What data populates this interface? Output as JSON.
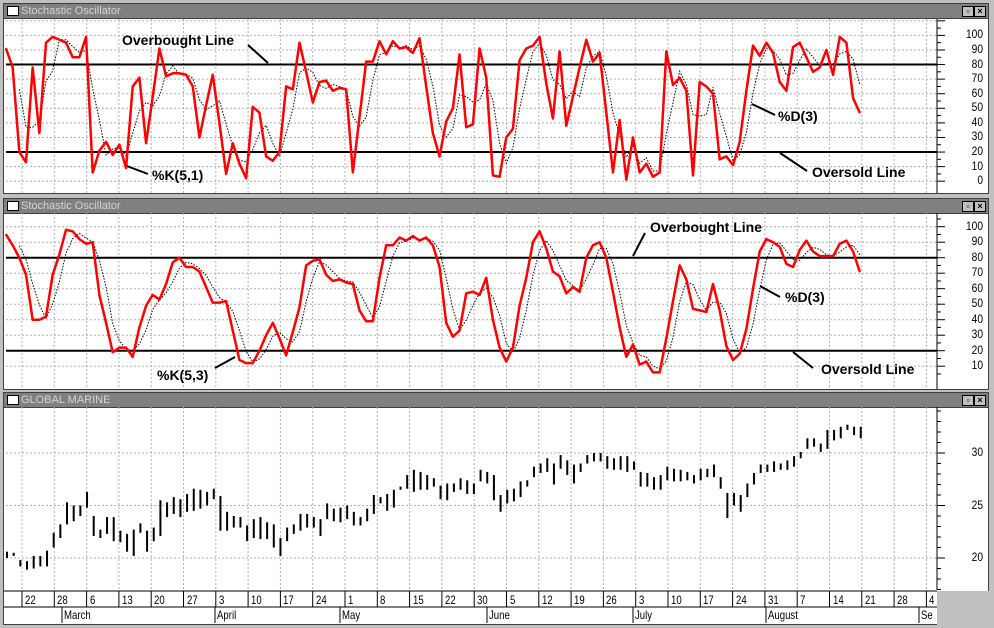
{
  "panels": [
    {
      "title": "Stochastic Oscillator",
      "restore_icon": "restore-icon",
      "close_icon": "close-icon"
    },
    {
      "title": "Stochastic Oscillator",
      "restore_icon": "restore-icon",
      "close_icon": "close-icon"
    },
    {
      "title": "GLOBAL MARINE",
      "restore_icon": "restore-icon",
      "close_icon": "close-icon"
    }
  ],
  "date_axis": {
    "days": [
      "22",
      "28",
      "6",
      "13",
      "20",
      "27",
      "3",
      "10",
      "17",
      "24",
      "1",
      "8",
      "15",
      "22",
      "30",
      "5",
      "12",
      "19",
      "26",
      "3",
      "10",
      "17",
      "24",
      "31",
      "7",
      "14",
      "21",
      "28",
      "4"
    ],
    "months": [
      "March",
      "April",
      "May",
      "June",
      "July",
      "August",
      "Se"
    ]
  },
  "chart_data": [
    {
      "type": "line",
      "title": "Stochastic Oscillator",
      "ylim": [
        0,
        100
      ],
      "yticks": [
        "100",
        "90",
        "80",
        "70",
        "60",
        "50",
        "40",
        "30",
        "20",
        "10",
        "0"
      ],
      "reference_lines": [
        80,
        20
      ],
      "annotations": [
        "Overbought Line",
        "%K(5,1)",
        "%D(3)",
        "Oversold Line"
      ],
      "colors": {
        "k": "#ff0000",
        "d": "#000000",
        "reference": "#000000"
      },
      "series": [
        {
          "name": "%K(5,1)",
          "style": "solid",
          "values": [
            91,
            78,
            20,
            13,
            78,
            33,
            95,
            99,
            97,
            95,
            85,
            85,
            99,
            6,
            21,
            27,
            18,
            25,
            9,
            65,
            71,
            26,
            58,
            91,
            72,
            74,
            74,
            73,
            65,
            30,
            52,
            73,
            40,
            5,
            26,
            12,
            2,
            51,
            47,
            17,
            14,
            20,
            65,
            63,
            95,
            75,
            54,
            68,
            69,
            62,
            64,
            63,
            6,
            44,
            82,
            82,
            96,
            87,
            96,
            91,
            92,
            88,
            98,
            65,
            33,
            17,
            41,
            50,
            87,
            37,
            39,
            91,
            71,
            4,
            3,
            30,
            36,
            83,
            91,
            93,
            99,
            67,
            43,
            89,
            38,
            58,
            78,
            97,
            82,
            88,
            47,
            6,
            42,
            1,
            30,
            6,
            12,
            3,
            6,
            89,
            66,
            71,
            62,
            4,
            68,
            65,
            60,
            15,
            17,
            11,
            27,
            62,
            93,
            86,
            95,
            88,
            68,
            62,
            92,
            95,
            85,
            75,
            78,
            90,
            73,
            99,
            95,
            57,
            47
          ]
        },
        {
          "name": "%D(3)",
          "style": "dotted",
          "moving_average_of": "%K(5,1)",
          "period": 3
        }
      ]
    },
    {
      "type": "line",
      "title": "Stochastic Oscillator",
      "ylim": [
        0,
        100
      ],
      "yticks": [
        "100",
        "90",
        "80",
        "70",
        "60",
        "50",
        "40",
        "30",
        "20",
        "10"
      ],
      "reference_lines": [
        80,
        20
      ],
      "annotations": [
        "Overbought Line",
        "%D(3)",
        "Oversold Line",
        "%K(5,3)"
      ],
      "colors": {
        "k": "#ff0000",
        "d": "#000000",
        "reference": "#000000"
      },
      "series": [
        {
          "name": "%K(5,3)",
          "style": "solid",
          "values": [
            95,
            88,
            80,
            69,
            40,
            40,
            42,
            69,
            82,
            98,
            97,
            92,
            89,
            90,
            56,
            38,
            19,
            22,
            22,
            16,
            35,
            49,
            56,
            53,
            63,
            77,
            80,
            74,
            74,
            71,
            61,
            51,
            51,
            52,
            33,
            14,
            12,
            12,
            20,
            30,
            38,
            28,
            17,
            32,
            48,
            75,
            78,
            79,
            69,
            65,
            66,
            64,
            63,
            46,
            39,
            39,
            67,
            88,
            88,
            93,
            91,
            94,
            91,
            93,
            88,
            74,
            38,
            29,
            33,
            57,
            58,
            56,
            67,
            40,
            22,
            13,
            22,
            49,
            67,
            90,
            97,
            86,
            71,
            68,
            57,
            61,
            58,
            80,
            88,
            90,
            80,
            58,
            35,
            16,
            24,
            11,
            13,
            6,
            6,
            28,
            52,
            75,
            66,
            47,
            46,
            45,
            63,
            46,
            23,
            14,
            18,
            34,
            60,
            84,
            92,
            90,
            87,
            76,
            74,
            85,
            91,
            84,
            81,
            81,
            81,
            89,
            91,
            84,
            71
          ]
        },
        {
          "name": "%D(3)",
          "style": "dotted",
          "moving_average_of": "%K(5,3)",
          "period": 3
        }
      ]
    },
    {
      "type": "bar",
      "subtype": "high-low price bars",
      "title": "GLOBAL MARINE",
      "ylim": [
        18,
        34
      ],
      "yticks": [
        "30",
        "25",
        "20"
      ],
      "colors": {
        "bar": "#000000"
      },
      "high": [
        20.6,
        20.5,
        19.8,
        19.7,
        20.2,
        20.2,
        20.7,
        22.4,
        23.2,
        25.3,
        25.0,
        25.0,
        26.3,
        24.0,
        22.7,
        23.9,
        23.9,
        22.6,
        22.3,
        22.7,
        23.3,
        22.6,
        22.9,
        25.5,
        25.3,
        25.8,
        25.6,
        26.1,
        26.6,
        26.5,
        26.3,
        26.6,
        25.9,
        24.4,
        24.0,
        23.9,
        23.1,
        23.7,
        23.9,
        23.4,
        23.2,
        21.9,
        22.9,
        23.2,
        24.2,
        24.2,
        23.9,
        23.7,
        25.2,
        24.7,
        24.8,
        25.0,
        24.4,
        23.9,
        24.7,
        26.0,
        25.8,
        26.1,
        26.5,
        26.8,
        27.9,
        28.4,
        28.2,
        27.9,
        27.6,
        26.9,
        27.1,
        27.1,
        27.6,
        27.4,
        27.1,
        28.4,
        28.2,
        27.9,
        26.0,
        26.5,
        26.6,
        27.3,
        27.4,
        28.7,
        29.0,
        29.5,
        29.0,
        29.8,
        29.3,
        28.9,
        29.0,
        29.8,
        30.0,
        30.0,
        29.7,
        29.5,
        29.7,
        29.7,
        29.2,
        28.2,
        28.1,
        27.7,
        27.9,
        28.7,
        28.5,
        28.4,
        28.2,
        27.9,
        28.5,
        28.5,
        28.9,
        27.7,
        26.2,
        26.2,
        26.0,
        27.1,
        28.1,
        28.9,
        28.9,
        29.2,
        29.0,
        29.3,
        29.7,
        30.1,
        31.4,
        31.4,
        30.9,
        32.2,
        32.2,
        32.5,
        32.7,
        32.5,
        32.5
      ],
      "low": [
        20.0,
        20.2,
        19.2,
        18.9,
        19.0,
        19.2,
        19.2,
        21.0,
        21.9,
        23.2,
        23.5,
        24.0,
        24.8,
        22.1,
        21.9,
        22.3,
        21.6,
        21.5,
        20.6,
        20.2,
        22.4,
        20.6,
        21.6,
        22.1,
        23.9,
        24.2,
        23.9,
        24.4,
        24.5,
        24.7,
        25.0,
        25.6,
        22.6,
        22.6,
        22.9,
        22.9,
        21.6,
        21.9,
        21.8,
        21.8,
        21.0,
        20.2,
        21.6,
        22.3,
        22.6,
        22.9,
        22.9,
        22.1,
        23.7,
        23.5,
        23.4,
        23.7,
        23.1,
        23.1,
        23.5,
        24.2,
        25.2,
        24.5,
        24.8,
        26.5,
        26.6,
        26.3,
        26.5,
        26.5,
        26.8,
        25.6,
        25.5,
        26.3,
        26.5,
        26.1,
        26.1,
        27.3,
        27.1,
        25.5,
        24.4,
        25.2,
        25.4,
        25.8,
        26.8,
        27.7,
        28.1,
        28.2,
        27.0,
        28.5,
        27.9,
        27.1,
        28.2,
        29.0,
        29.2,
        29.2,
        28.5,
        28.4,
        28.4,
        28.2,
        28.4,
        26.8,
        26.8,
        26.5,
        26.5,
        27.4,
        27.3,
        27.3,
        27.4,
        27.1,
        27.4,
        27.7,
        27.7,
        26.6,
        23.8,
        25.0,
        24.4,
        25.8,
        27.0,
        28.1,
        28.2,
        28.2,
        28.4,
        28.4,
        28.7,
        29.5,
        30.4,
        30.6,
        30.1,
        30.4,
        31.2,
        31.4,
        32.2,
        31.7,
        31.4
      ]
    }
  ]
}
